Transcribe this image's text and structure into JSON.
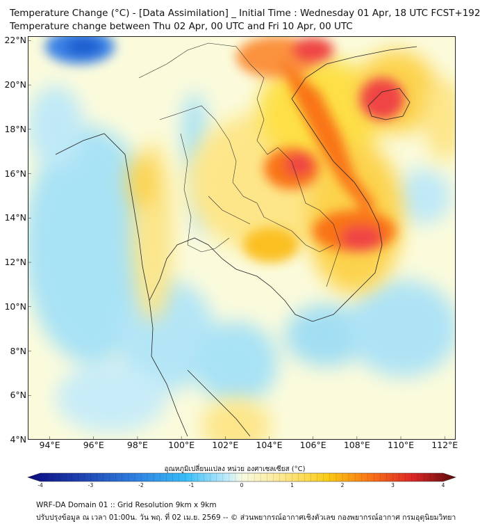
{
  "title_line1": "Temperature Change (°C) - [Data Assimilation] _ Initial Time : Wednesday 01 Apr, 18 UTC FCST+192",
  "title_line2": "Temperature change between Thu 02 Apr, 00 UTC and Fri 10 Apr, 00 UTC",
  "y_ticks": [
    "22°N",
    "20°N",
    "18°N",
    "16°N",
    "14°N",
    "12°N",
    "10°N",
    "8°N",
    "6°N",
    "4°N"
  ],
  "x_ticks": [
    "94°E",
    "96°E",
    "98°E",
    "100°E",
    "102°E",
    "104°E",
    "106°E",
    "108°E",
    "110°E",
    "112°E"
  ],
  "colorbar": {
    "title": "อุณหภูมิเปลี่ยนแปลง หน่วย องศาเซลเซียส (°C)",
    "ticks": [
      "-4",
      "-3",
      "-2",
      "-1",
      "0",
      "1",
      "2",
      "3",
      "4"
    ],
    "range": [
      -4,
      4
    ]
  },
  "footer_line1": "WRF-DA Domain 01 :: Grid Resolution 9km x 9km",
  "footer_line2": "ปรับปรุงข้อมูล ณ เวลา 01:00น. วัน พฤ. ที่ 02 เม.ย. 2569 -- © ส่วนพยากรณ์อากาศเชิงตัวเลข กองพยากรณ์อากาศ กรมอุตุนิยมวิทยา",
  "map": {
    "lon_range": [
      93,
      112.5
    ],
    "lat_range": [
      4,
      22.2
    ],
    "colors": {
      "ocean_cool": "#9fdcf2",
      "neutral": "#fafcd9",
      "warm": "#fde047",
      "hot": "#f97316",
      "hottest": "#e11d1d",
      "cold": "#1d6fd8",
      "border": "#222222"
    }
  }
}
